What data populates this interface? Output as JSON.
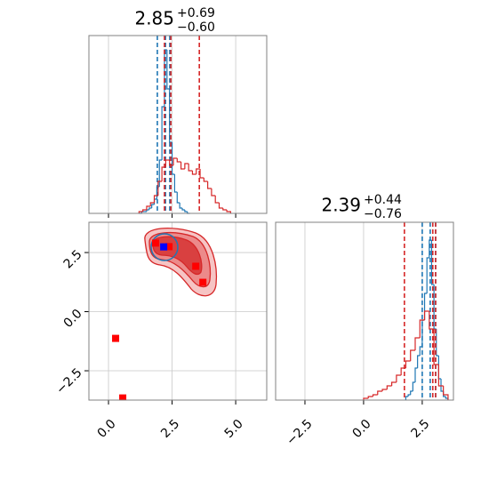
{
  "chart_data": [
    {
      "type": "histogram",
      "title": {
        "main": "2.85",
        "upper": "+0.69",
        "lower": "−0.60"
      },
      "xlim": [
        -0.77,
        6.22
      ],
      "ylim": [
        0,
        100
      ],
      "xticks": [
        0,
        2.5,
        5
      ],
      "grid": true,
      "series": [
        {
          "color": "#1f77b4",
          "bins": [
            1.2,
            1.3,
            1.4,
            1.5,
            1.6,
            1.7,
            1.8,
            1.9,
            2.0,
            2.1,
            2.2,
            2.3,
            2.4,
            2.5,
            2.6,
            2.7,
            2.8,
            2.9,
            3.0,
            3.1,
            3.2
          ],
          "values": [
            0,
            1,
            1,
            2,
            3,
            5,
            8,
            15,
            30,
            60,
            92,
            70,
            40,
            22,
            12,
            6,
            3,
            2,
            1,
            0
          ],
          "quantiles": [
            1.92,
            2.24,
            2.41
          ]
        },
        {
          "color": "#d62728",
          "bins": [
            1.2,
            1.35,
            1.5,
            1.65,
            1.8,
            1.95,
            2.1,
            2.25,
            2.4,
            2.55,
            2.7,
            2.85,
            3.0,
            3.15,
            3.3,
            3.45,
            3.6,
            3.75,
            3.9,
            4.05,
            4.2,
            4.35,
            4.5,
            4.65,
            4.8
          ],
          "values": [
            1,
            2,
            4,
            6,
            10,
            18,
            26,
            30,
            27,
            31,
            29,
            25,
            28,
            24,
            22,
            25,
            20,
            18,
            14,
            10,
            6,
            3,
            2,
            1
          ],
          "quantiles": [
            2.2,
            2.45,
            3.57
          ]
        }
      ]
    },
    {
      "type": "scatter",
      "xlim": [
        -0.77,
        6.22
      ],
      "ylim": [
        -3.74,
        3.78
      ],
      "grid": true,
      "xticks": [
        {
          "value": 0,
          "label": "0.0"
        },
        2.5,
        {
          "value": 5,
          "label": "5.0"
        }
      ],
      "yticks": [
        {
          "value": -2.5,
          "label": "−2.5"
        },
        {
          "value": 0,
          "label": "0.0"
        },
        2.5
      ],
      "series": [
        {
          "color": "#ff0000",
          "x": [
            1.85,
            2.38,
            3.43,
            3.71,
            0.28,
            0.56
          ],
          "y": [
            2.9,
            2.75,
            1.92,
            1.24,
            -1.13,
            -3.65
          ]
        },
        {
          "color": "#0000ff",
          "x": [
            2.17
          ],
          "y": [
            2.74
          ]
        }
      ]
    },
    {
      "type": "histogram",
      "title": {
        "main": "2.39",
        "upper": "+0.44",
        "lower": "−0.76"
      },
      "xlim": [
        -3.75,
        3.83
      ],
      "ylim": [
        0,
        100
      ],
      "grid": true,
      "xticks": [
        {
          "value": -2.5,
          "label": "−2.5"
        },
        {
          "value": 0,
          "label": "0.0"
        },
        2.5
      ],
      "series": [
        {
          "color": "#1f77b4",
          "bins": [
            1.8,
            1.9,
            2.0,
            2.1,
            2.2,
            2.3,
            2.4,
            2.5,
            2.6,
            2.7,
            2.8,
            2.9,
            3.0,
            3.1,
            3.2,
            3.3,
            3.4,
            3.5,
            3.6
          ],
          "values": [
            2,
            3,
            5,
            10,
            18,
            25,
            30,
            45,
            60,
            80,
            90,
            65,
            40,
            25,
            12,
            5,
            2,
            1
          ],
          "quantiles": [
            2.5,
            2.84,
            3.07
          ]
        },
        {
          "color": "#d62728",
          "bins": [
            0,
            0.2,
            0.4,
            0.6,
            0.8,
            1.0,
            1.2,
            1.4,
            1.6,
            1.8,
            2.0,
            2.2,
            2.4,
            2.6,
            2.8,
            3.0,
            3.2,
            3.4,
            3.6
          ],
          "values": [
            1,
            2,
            3,
            5,
            6,
            8,
            10,
            14,
            18,
            22,
            28,
            35,
            45,
            50,
            40,
            20,
            8,
            3
          ],
          "quantiles": [
            1.74,
            2.95,
            3.07
          ]
        }
      ]
    }
  ]
}
